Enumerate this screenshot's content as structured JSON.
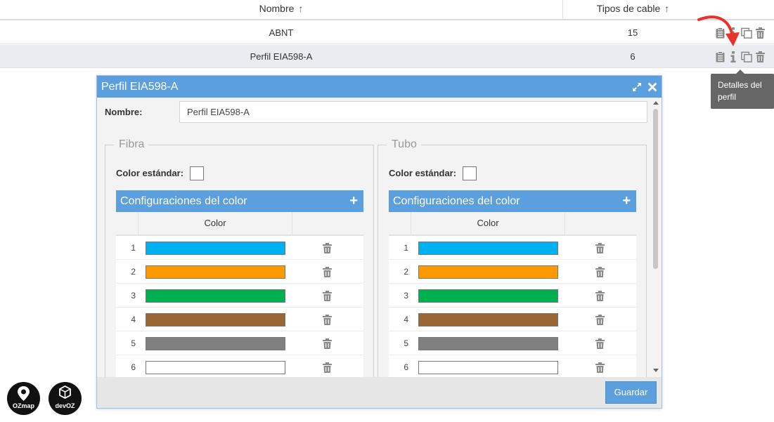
{
  "table": {
    "headers": {
      "nombre": "Nombre",
      "tipos": "Tipos de cable"
    },
    "rows": [
      {
        "nombre": "ABNT",
        "tipos": "15"
      },
      {
        "nombre": "Perfil EIA598-A",
        "tipos": "6"
      }
    ]
  },
  "tooltip": {
    "text": "Detalles del perfil"
  },
  "modal": {
    "title": "Perfil EIA598-A",
    "nombre_label": "Nombre:",
    "nombre_value": "Perfil EIA598-A",
    "save_label": "Guardar",
    "sections": [
      {
        "legend": "Fibra",
        "std_label": "Color estándar:",
        "config_title": "Configuraciones del color",
        "add_symbol": "+",
        "color_header": "Color",
        "rows": [
          {
            "index": "1",
            "color": "#00b0f0"
          },
          {
            "index": "2",
            "color": "#ff9900"
          },
          {
            "index": "3",
            "color": "#00b050"
          },
          {
            "index": "4",
            "color": "#996633"
          },
          {
            "index": "5",
            "color": "#808080"
          },
          {
            "index": "6",
            "color": "#ffffff"
          }
        ]
      },
      {
        "legend": "Tubo",
        "std_label": "Color estándar:",
        "config_title": "Configuraciones del color",
        "add_symbol": "+",
        "color_header": "Color",
        "rows": [
          {
            "index": "1",
            "color": "#00b0f0"
          },
          {
            "index": "2",
            "color": "#ff9900"
          },
          {
            "index": "3",
            "color": "#00b050"
          },
          {
            "index": "4",
            "color": "#996633"
          },
          {
            "index": "5",
            "color": "#808080"
          },
          {
            "index": "6",
            "color": "#ffffff"
          }
        ]
      }
    ]
  },
  "logos": {
    "ozmap": "OZmap",
    "devoz": "devOZ"
  },
  "colors": {
    "accent": "#5b9fde",
    "tooltip_bg": "#666666",
    "pointer_arrow": "#e8332a"
  }
}
